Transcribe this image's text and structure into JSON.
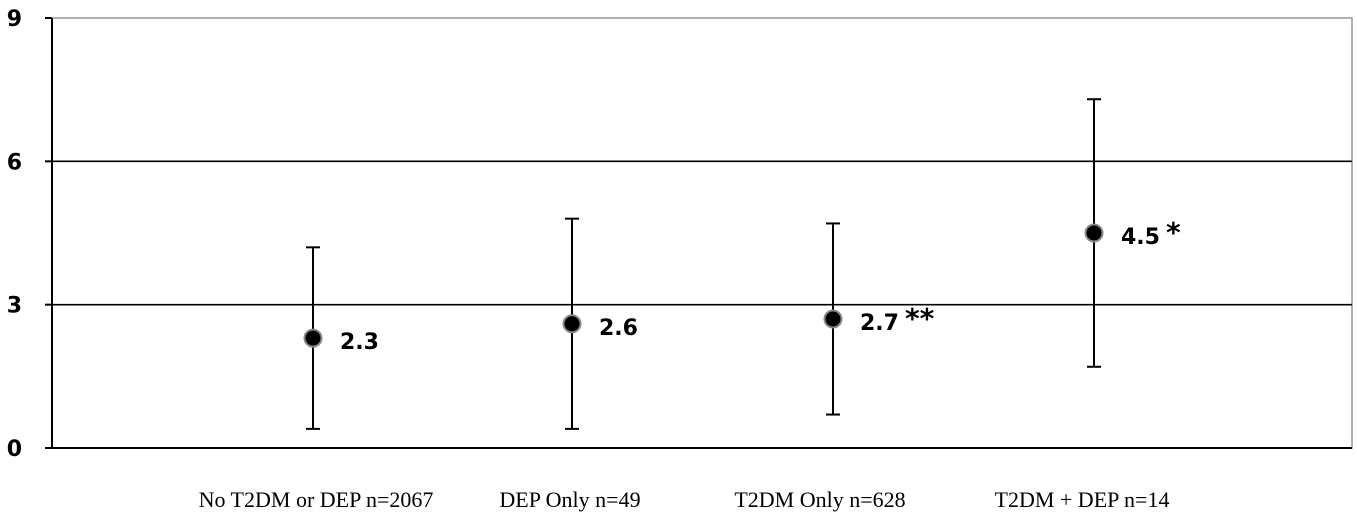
{
  "chart_data": {
    "type": "scatter",
    "title": "",
    "xlabel": "",
    "ylabel": "",
    "ylim": [
      0,
      9
    ],
    "yticks": [
      0,
      3,
      6,
      9
    ],
    "grid": true,
    "categories": [
      "No T2DM or DEP n=2067",
      "DEP Only n=49",
      "T2DM Only n=628",
      "T2DM + DEP n=14"
    ],
    "points": [
      {
        "category": "No T2DM or DEP n=2067",
        "value": 2.3,
        "lower": 0.4,
        "upper": 4.2,
        "label": "2.3",
        "significance": ""
      },
      {
        "category": "DEP Only n=49",
        "value": 2.6,
        "lower": 0.4,
        "upper": 4.8,
        "label": "2.6",
        "significance": ""
      },
      {
        "category": "T2DM Only n=628",
        "value": 2.7,
        "lower": 0.7,
        "upper": 4.7,
        "label": "2.7",
        "significance": "**"
      },
      {
        "category": "T2DM + DEP n=14",
        "value": 4.5,
        "lower": 1.7,
        "upper": 7.3,
        "label": "4.5",
        "significance": "*"
      }
    ],
    "colors": {
      "marker": "#000000",
      "marker_stroke": "#888888",
      "axis": "#000000",
      "frame": "#999999"
    }
  }
}
